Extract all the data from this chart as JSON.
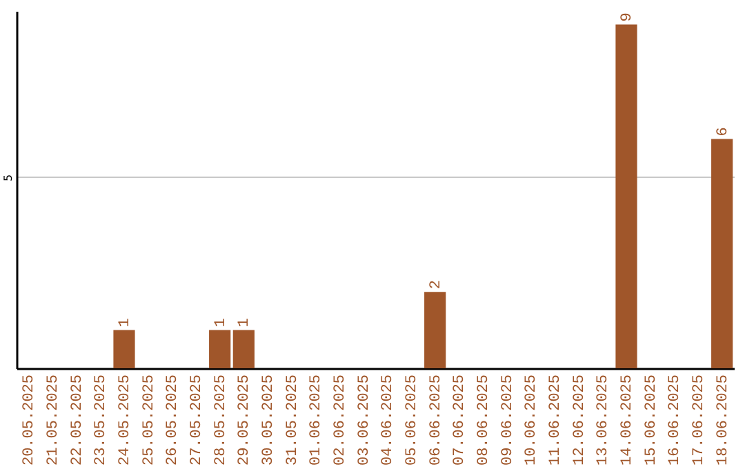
{
  "chart_data": {
    "type": "bar",
    "categories": [
      "20.05.2025",
      "21.05.2025",
      "22.05.2025",
      "23.05.2025",
      "24.05.2025",
      "25.05.2025",
      "26.05.2025",
      "27.05.2025",
      "28.05.2025",
      "29.05.2025",
      "30.05.2025",
      "31.05.2025",
      "01.06.2025",
      "02.06.2025",
      "03.06.2025",
      "04.06.2025",
      "05.06.2025",
      "06.06.2025",
      "07.06.2025",
      "08.06.2025",
      "09.06.2025",
      "10.06.2025",
      "11.06.2025",
      "12.06.2025",
      "13.06.2025",
      "14.06.2025",
      "15.06.2025",
      "16.06.2025",
      "17.06.2025",
      "18.06.2025"
    ],
    "values": [
      0,
      0,
      0,
      0,
      1,
      0,
      0,
      0,
      1,
      1,
      0,
      0,
      0,
      0,
      0,
      0,
      0,
      2,
      0,
      0,
      0,
      0,
      0,
      0,
      0,
      9,
      0,
      0,
      0,
      6
    ],
    "value_labels": [
      null,
      null,
      null,
      null,
      "1",
      null,
      null,
      null,
      "1",
      "1",
      null,
      null,
      null,
      null,
      null,
      null,
      null,
      "2",
      null,
      null,
      null,
      null,
      null,
      null,
      null,
      "9",
      null,
      null,
      null,
      "6"
    ],
    "color": "#a0562a",
    "ylim": [
      0,
      9.35
    ],
    "yticks": [
      5
    ],
    "grid": "y"
  }
}
